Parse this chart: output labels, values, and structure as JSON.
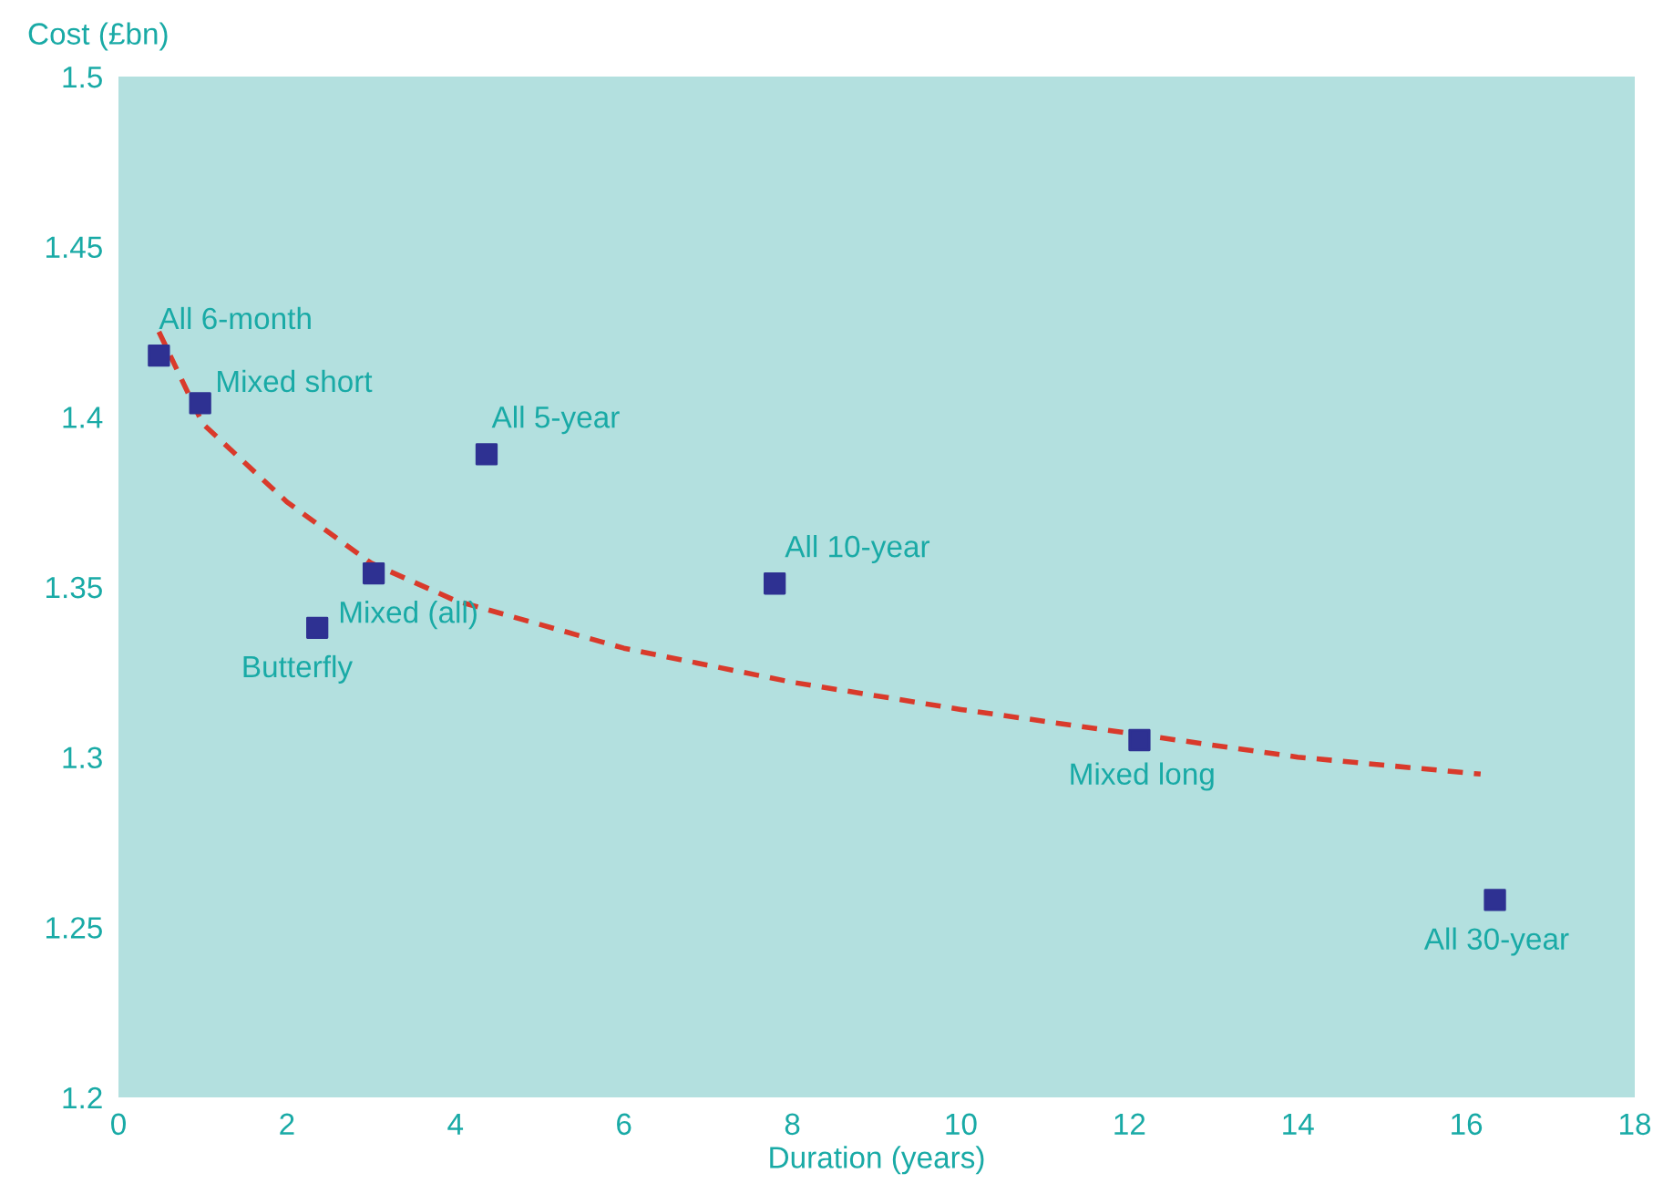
{
  "chart_data": {
    "type": "scatter",
    "xlabel": "Duration (years)",
    "ylabel": "Cost (£bn)",
    "xlim": [
      0,
      18
    ],
    "ylim": [
      1.2,
      1.5
    ],
    "xticks": [
      0,
      2,
      4,
      6,
      8,
      10,
      12,
      14,
      16,
      18
    ],
    "yticks": [
      1.2,
      1.25,
      1.3,
      1.35,
      1.4,
      1.45,
      1.5
    ],
    "grid": false,
    "legend": false,
    "marker": "square",
    "series": [
      {
        "color": "#2e3192",
        "x": [
          0.48,
          0.97,
          4.37,
          3.03,
          2.36,
          7.79,
          12.12,
          16.34
        ],
        "values": [
          1.418,
          1.404,
          1.389,
          1.354,
          1.338,
          1.351,
          1.305,
          1.258
        ]
      },
      {
        "type": "line",
        "color": "#d93a2b",
        "line_style": "dashed",
        "marker": "none",
        "x": [
          0.48,
          1,
          2,
          3,
          4,
          6,
          8,
          10,
          12,
          14,
          16.17
        ],
        "values": [
          1.425,
          1.398,
          1.375,
          1.357,
          1.346,
          1.332,
          1.322,
          1.314,
          1.307,
          1.3,
          1.295
        ]
      }
    ],
    "annotations": [
      {
        "text": "All 6-month",
        "x": 0.48,
        "y": 1.418
      },
      {
        "text": "Mixed short",
        "x": 0.97,
        "y": 1.404
      },
      {
        "text": "All 5-year",
        "x": 4.37,
        "y": 1.389
      },
      {
        "text": "Mixed (all)",
        "x": 3.03,
        "y": 1.354
      },
      {
        "text": "Butterfly",
        "x": 2.36,
        "y": 1.338
      },
      {
        "text": "All 10-year",
        "x": 7.79,
        "y": 1.351
      },
      {
        "text": "Mixed long",
        "x": 12.12,
        "y": 1.305
      },
      {
        "text": "All 30-year",
        "x": 16.34,
        "y": 1.258
      }
    ]
  }
}
